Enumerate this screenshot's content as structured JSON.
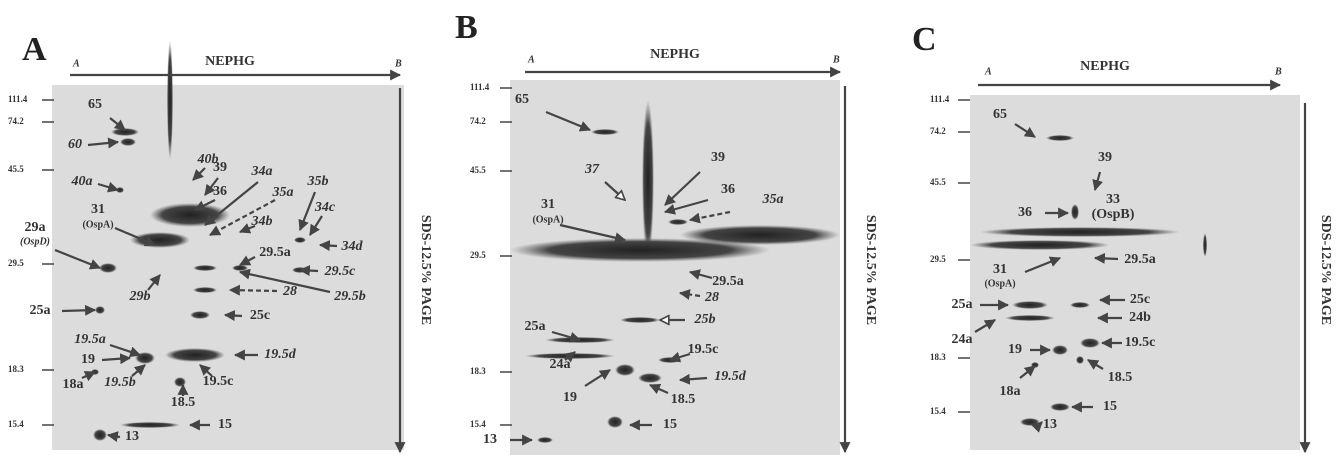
{
  "panels": [
    {
      "label": "A",
      "axis_title": "NEPHG",
      "axis_start": "A",
      "axis_end": "B",
      "y_title": "SDS-12.5% PAGE",
      "mw_ticks": [
        "111.4",
        "74.2",
        "45.5",
        "29.5",
        "18.3",
        "15.4"
      ],
      "spots": [
        "65",
        "60",
        "40a",
        "40b",
        "39",
        "36",
        "34a",
        "35a",
        "34b",
        "35b",
        "34c",
        "34d",
        "31",
        "(OspA)",
        "29a",
        "(OspD)",
        "29.5a",
        "29.5c",
        "29.5b",
        "29b",
        "28",
        "25a",
        "25c",
        "19.5a",
        "19.5d",
        "19",
        "19.5b",
        "19.5c",
        "18a",
        "18.5",
        "15",
        "13"
      ]
    },
    {
      "label": "B",
      "axis_title": "NEPHG",
      "axis_start": "A",
      "axis_end": "B",
      "y_title": "SDS-12.5% PAGE",
      "mw_ticks": [
        "111.4",
        "74.2",
        "45.5",
        "29.5",
        "18.3",
        "15.4"
      ],
      "spots": [
        "65",
        "37",
        "39",
        "36",
        "35a",
        "31",
        "(OspA)",
        "29.5a",
        "28",
        "25a",
        "25b",
        "24a",
        "19.5c",
        "19.5d",
        "19",
        "18.5",
        "15",
        "13"
      ]
    },
    {
      "label": "C",
      "axis_title": "NEPHG",
      "axis_start": "A",
      "axis_end": "B",
      "y_title": "SDS-12.5% PAGE",
      "mw_ticks": [
        "111.4",
        "74.2",
        "45.5",
        "29.5",
        "18.3",
        "15.4"
      ],
      "spots": [
        "65",
        "39",
        "36",
        "33",
        "(OspB)",
        "31",
        "(OspA)",
        "29.5a",
        "25a",
        "25c",
        "24b",
        "24a",
        "19",
        "19.5c",
        "18a",
        "18.5",
        "15",
        "13"
      ]
    }
  ]
}
